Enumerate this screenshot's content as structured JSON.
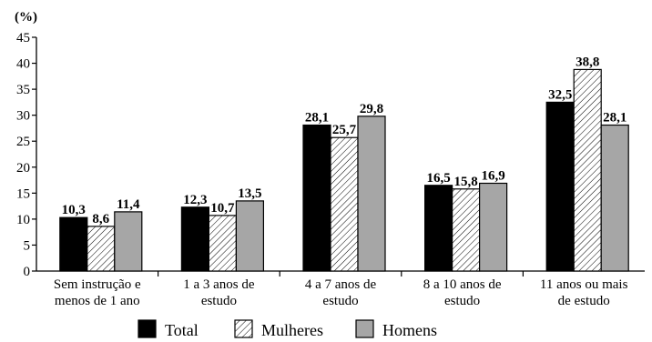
{
  "chart_data": {
    "type": "bar",
    "unit_label": "(%)",
    "ylim": [
      0,
      45
    ],
    "yticks": [
      "0",
      "5",
      "10",
      "15",
      "20",
      "25",
      "30",
      "35",
      "40",
      "45"
    ],
    "categories": [
      [
        "Sem instrução e",
        "menos de 1 ano"
      ],
      [
        "1 a 3 anos de",
        "estudo"
      ],
      [
        "4 a 7 anos de",
        "estudo"
      ],
      [
        "8 a 10 anos de",
        "estudo"
      ],
      [
        "11 anos ou mais",
        "de estudo"
      ]
    ],
    "series": [
      {
        "name": "Total",
        "fill": "solid-black",
        "color": "#000000",
        "values": [
          10.3,
          12.3,
          28.1,
          16.5,
          32.5
        ],
        "labels": [
          "10,3",
          "12,3",
          "28,1",
          "16,5",
          "32,5"
        ]
      },
      {
        "name": "Mulheres",
        "fill": "diagonal-hatch",
        "color": "#ffffff",
        "values": [
          8.6,
          10.7,
          25.7,
          15.8,
          38.8
        ],
        "labels": [
          "8,6",
          "10,7",
          "25,7",
          "15,8",
          "38,8"
        ]
      },
      {
        "name": "Homens",
        "fill": "solid-gray",
        "color": "#a6a6a6",
        "values": [
          11.4,
          13.5,
          29.8,
          16.9,
          28.1
        ],
        "labels": [
          "11,4",
          "13,5",
          "29,8",
          "16,9",
          "28,1"
        ]
      }
    ],
    "legend_position": "bottom-center",
    "grid": false
  }
}
